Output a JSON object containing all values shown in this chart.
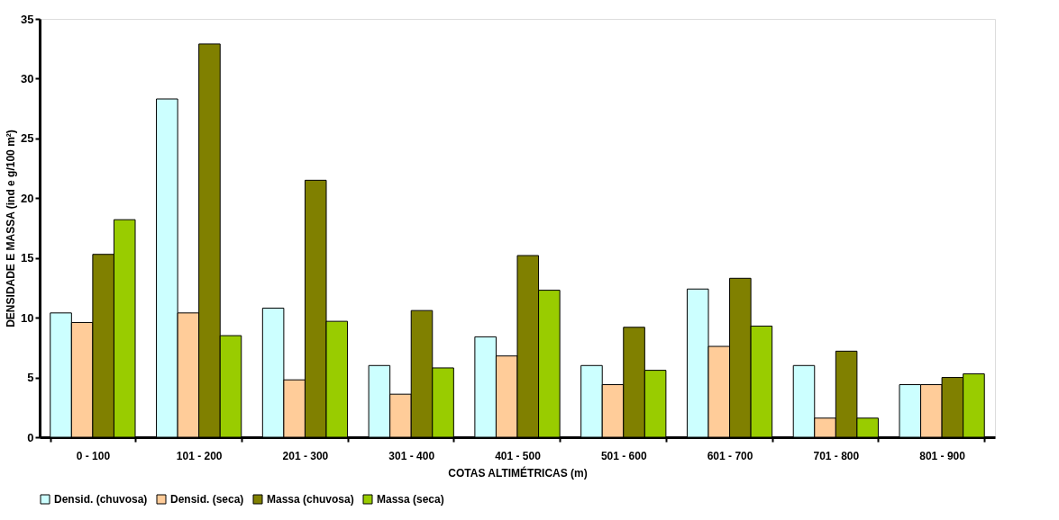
{
  "chart_data": {
    "type": "bar",
    "xlabel": "COTAS ALTIMÉTRICAS (m)",
    "ylabel": "DENSIDADE E MASSA (ind e g/100 m²)",
    "categories": [
      "0 - 100",
      "101 - 200",
      "201 - 300",
      "301 - 400",
      "401 - 500",
      "501 - 600",
      "601 - 700",
      "701 - 800",
      "801 - 900"
    ],
    "series": [
      {
        "name": "Densid. (chuvosa)",
        "color": "#ccffff",
        "values": [
          10.4,
          28.3,
          10.8,
          6.0,
          8.4,
          6.0,
          12.4,
          6.0,
          4.4
        ]
      },
      {
        "name": "Densid. (seca)",
        "color": "#ffcc99",
        "values": [
          9.6,
          10.4,
          4.8,
          3.6,
          6.8,
          4.4,
          7.6,
          1.6,
          4.4
        ]
      },
      {
        "name": "Massa (chuvosa)",
        "color": "#808000",
        "values": [
          15.3,
          32.9,
          21.5,
          10.6,
          15.2,
          9.2,
          13.3,
          7.2,
          5.0
        ]
      },
      {
        "name": "Massa (seca)",
        "color": "#99cc00",
        "values": [
          18.2,
          8.5,
          9.7,
          5.8,
          12.3,
          5.6,
          9.3,
          1.6,
          5.3
        ]
      }
    ],
    "ylim": [
      0,
      35
    ],
    "yticks": [
      0,
      5,
      10,
      15,
      20,
      25,
      30,
      35
    ],
    "grid": false,
    "legend": "bottom"
  }
}
